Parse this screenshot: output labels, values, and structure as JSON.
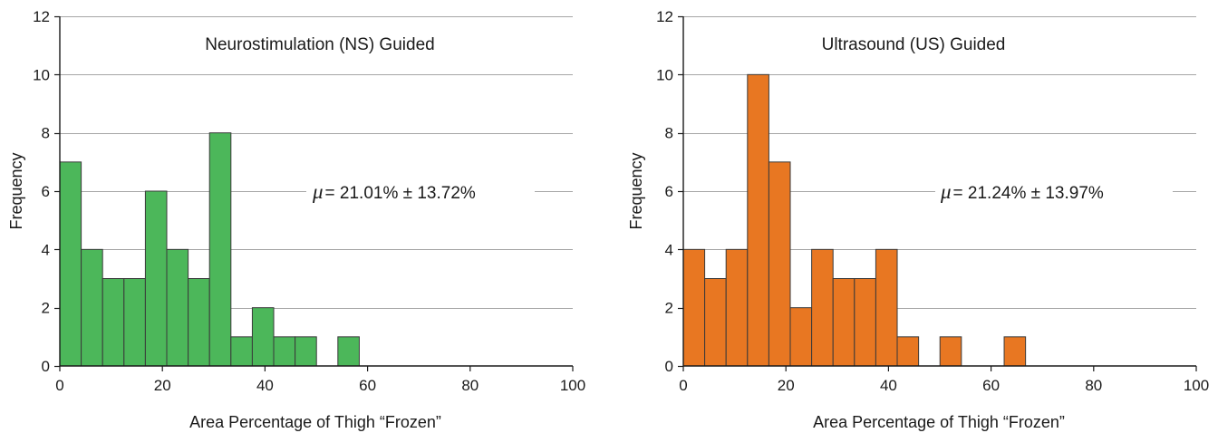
{
  "chart_data": [
    {
      "type": "bar",
      "title": "Neurostimulation (NS) Guided",
      "xlabel": "Area Percentage of Thigh “Frozen”",
      "ylabel": "Frequency",
      "xlim": [
        0,
        100
      ],
      "ylim": [
        0,
        12
      ],
      "xticks": [
        "0",
        "20",
        "40",
        "60",
        "80",
        "100"
      ],
      "yticks": [
        "0",
        "2",
        "4",
        "6",
        "8",
        "10",
        "12"
      ],
      "grid": "horizontal",
      "bar_color": "#4cb75a",
      "bin_width": 4.17,
      "bin_start": 0,
      "values": [
        7,
        4,
        3,
        3,
        6,
        4,
        3,
        8,
        1,
        2,
        1,
        1,
        0,
        1
      ],
      "annotation": {
        "mu_symbol": "μ",
        "text": "= 21.01% ± 13.72%"
      }
    },
    {
      "type": "bar",
      "title": "Ultrasound (US) Guided",
      "xlabel": "Area Percentage of Thigh “Frozen”",
      "ylabel": "Frequency",
      "xlim": [
        0,
        100
      ],
      "ylim": [
        0,
        12
      ],
      "xticks": [
        "0",
        "20",
        "40",
        "60",
        "80",
        "100"
      ],
      "yticks": [
        "0",
        "2",
        "4",
        "6",
        "8",
        "10",
        "12"
      ],
      "grid": "horizontal",
      "bar_color": "#e87722",
      "bin_width": 4.17,
      "bin_start": 0,
      "values": [
        4,
        3,
        4,
        10,
        7,
        2,
        4,
        3,
        3,
        4,
        1,
        0,
        1,
        0,
        0,
        1
      ],
      "annotation": {
        "mu_symbol": "μ",
        "text": "= 21.24% ± 13.97%"
      }
    }
  ]
}
